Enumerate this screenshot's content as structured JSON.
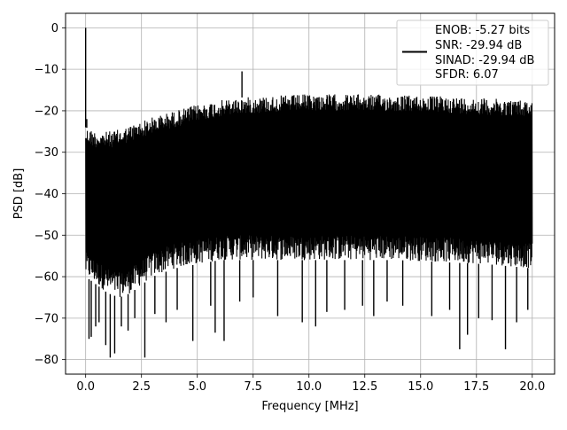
{
  "chart_data": {
    "type": "line",
    "title": "",
    "xlabel": "Frequency [MHz]",
    "ylabel": "PSD [dB]",
    "xlim": [
      -0.9,
      21.0
    ],
    "ylim": [
      -83.5,
      3.5
    ],
    "xticks": [
      0.0,
      2.5,
      5.0,
      7.5,
      10.0,
      12.5,
      15.0,
      17.5,
      20.0
    ],
    "xtick_labels": [
      "0.0",
      "2.5",
      "5.0",
      "7.5",
      "10.0",
      "12.5",
      "15.0",
      "17.5",
      "20.0"
    ],
    "yticks": [
      0,
      -10,
      -20,
      -30,
      -40,
      -50,
      -60,
      -70,
      -80
    ],
    "ytick_labels": [
      "0",
      "−10",
      "−20",
      "−30",
      "−40",
      "−50",
      "−60",
      "−70",
      "−80"
    ],
    "grid": true,
    "legend_position": "top-right",
    "legend_lines": [
      "ENOB: -5.27 bits",
      "SNR: -29.94 dB",
      "SINAD: -29.94 dB",
      "SFDR: 6.07"
    ],
    "line_color": "#000000",
    "x_range": [
      0.0,
      20.0
    ],
    "envelope": {
      "x": [
        0.0,
        0.5,
        1.0,
        1.5,
        2.0,
        2.5,
        3.0,
        4.0,
        5.0,
        6.0,
        7.0,
        8.0,
        10.0,
        12.0,
        14.0,
        16.0,
        18.0,
        20.0
      ],
      "upper": [
        -24.0,
        -25.0,
        -25.0,
        -24.5,
        -23.5,
        -22.5,
        -21.5,
        -20.0,
        -18.5,
        -17.5,
        -16.8,
        -16.5,
        -16.0,
        -16.0,
        -16.2,
        -16.5,
        -17.0,
        -17.5
      ],
      "lower": [
        -60.0,
        -62.0,
        -64.0,
        -65.0,
        -64.0,
        -62.0,
        -60.0,
        -58.0,
        -57.0,
        -56.0,
        -56.0,
        -56.0,
        -56.0,
        -56.0,
        -56.0,
        -56.5,
        -57.0,
        -58.0
      ]
    },
    "spikes": [
      {
        "x": 0.0,
        "y": 0.0
      },
      {
        "x": 0.05,
        "y": -22.0
      },
      {
        "x": 7.0,
        "y": -10.5
      }
    ],
    "dips": [
      {
        "x": 0.15,
        "y": -75.0
      },
      {
        "x": 0.25,
        "y": -74.5
      },
      {
        "x": 0.45,
        "y": -72.0
      },
      {
        "x": 0.6,
        "y": -71.0
      },
      {
        "x": 0.9,
        "y": -76.5
      },
      {
        "x": 1.1,
        "y": -79.5
      },
      {
        "x": 1.3,
        "y": -78.5
      },
      {
        "x": 1.6,
        "y": -72.0
      },
      {
        "x": 1.9,
        "y": -73.0
      },
      {
        "x": 2.2,
        "y": -70.0
      },
      {
        "x": 2.65,
        "y": -79.5
      },
      {
        "x": 3.1,
        "y": -69.0
      },
      {
        "x": 3.6,
        "y": -71.0
      },
      {
        "x": 4.1,
        "y": -68.0
      },
      {
        "x": 4.8,
        "y": -75.5
      },
      {
        "x": 5.6,
        "y": -67.0
      },
      {
        "x": 5.8,
        "y": -73.5
      },
      {
        "x": 6.2,
        "y": -75.5
      },
      {
        "x": 6.9,
        "y": -66.0
      },
      {
        "x": 7.5,
        "y": -65.0
      },
      {
        "x": 8.6,
        "y": -69.5
      },
      {
        "x": 9.7,
        "y": -71.0
      },
      {
        "x": 10.3,
        "y": -72.0
      },
      {
        "x": 10.8,
        "y": -68.5
      },
      {
        "x": 11.6,
        "y": -68.0
      },
      {
        "x": 12.4,
        "y": -67.0
      },
      {
        "x": 12.9,
        "y": -69.5
      },
      {
        "x": 13.5,
        "y": -66.0
      },
      {
        "x": 14.2,
        "y": -67.0
      },
      {
        "x": 15.5,
        "y": -69.5
      },
      {
        "x": 16.3,
        "y": -68.0
      },
      {
        "x": 16.75,
        "y": -77.5
      },
      {
        "x": 17.1,
        "y": -74.0
      },
      {
        "x": 17.6,
        "y": -70.0
      },
      {
        "x": 18.2,
        "y": -70.5
      },
      {
        "x": 18.8,
        "y": -77.5
      },
      {
        "x": 19.3,
        "y": -71.0
      },
      {
        "x": 19.8,
        "y": -68.0
      }
    ],
    "noise_points": 1600
  }
}
